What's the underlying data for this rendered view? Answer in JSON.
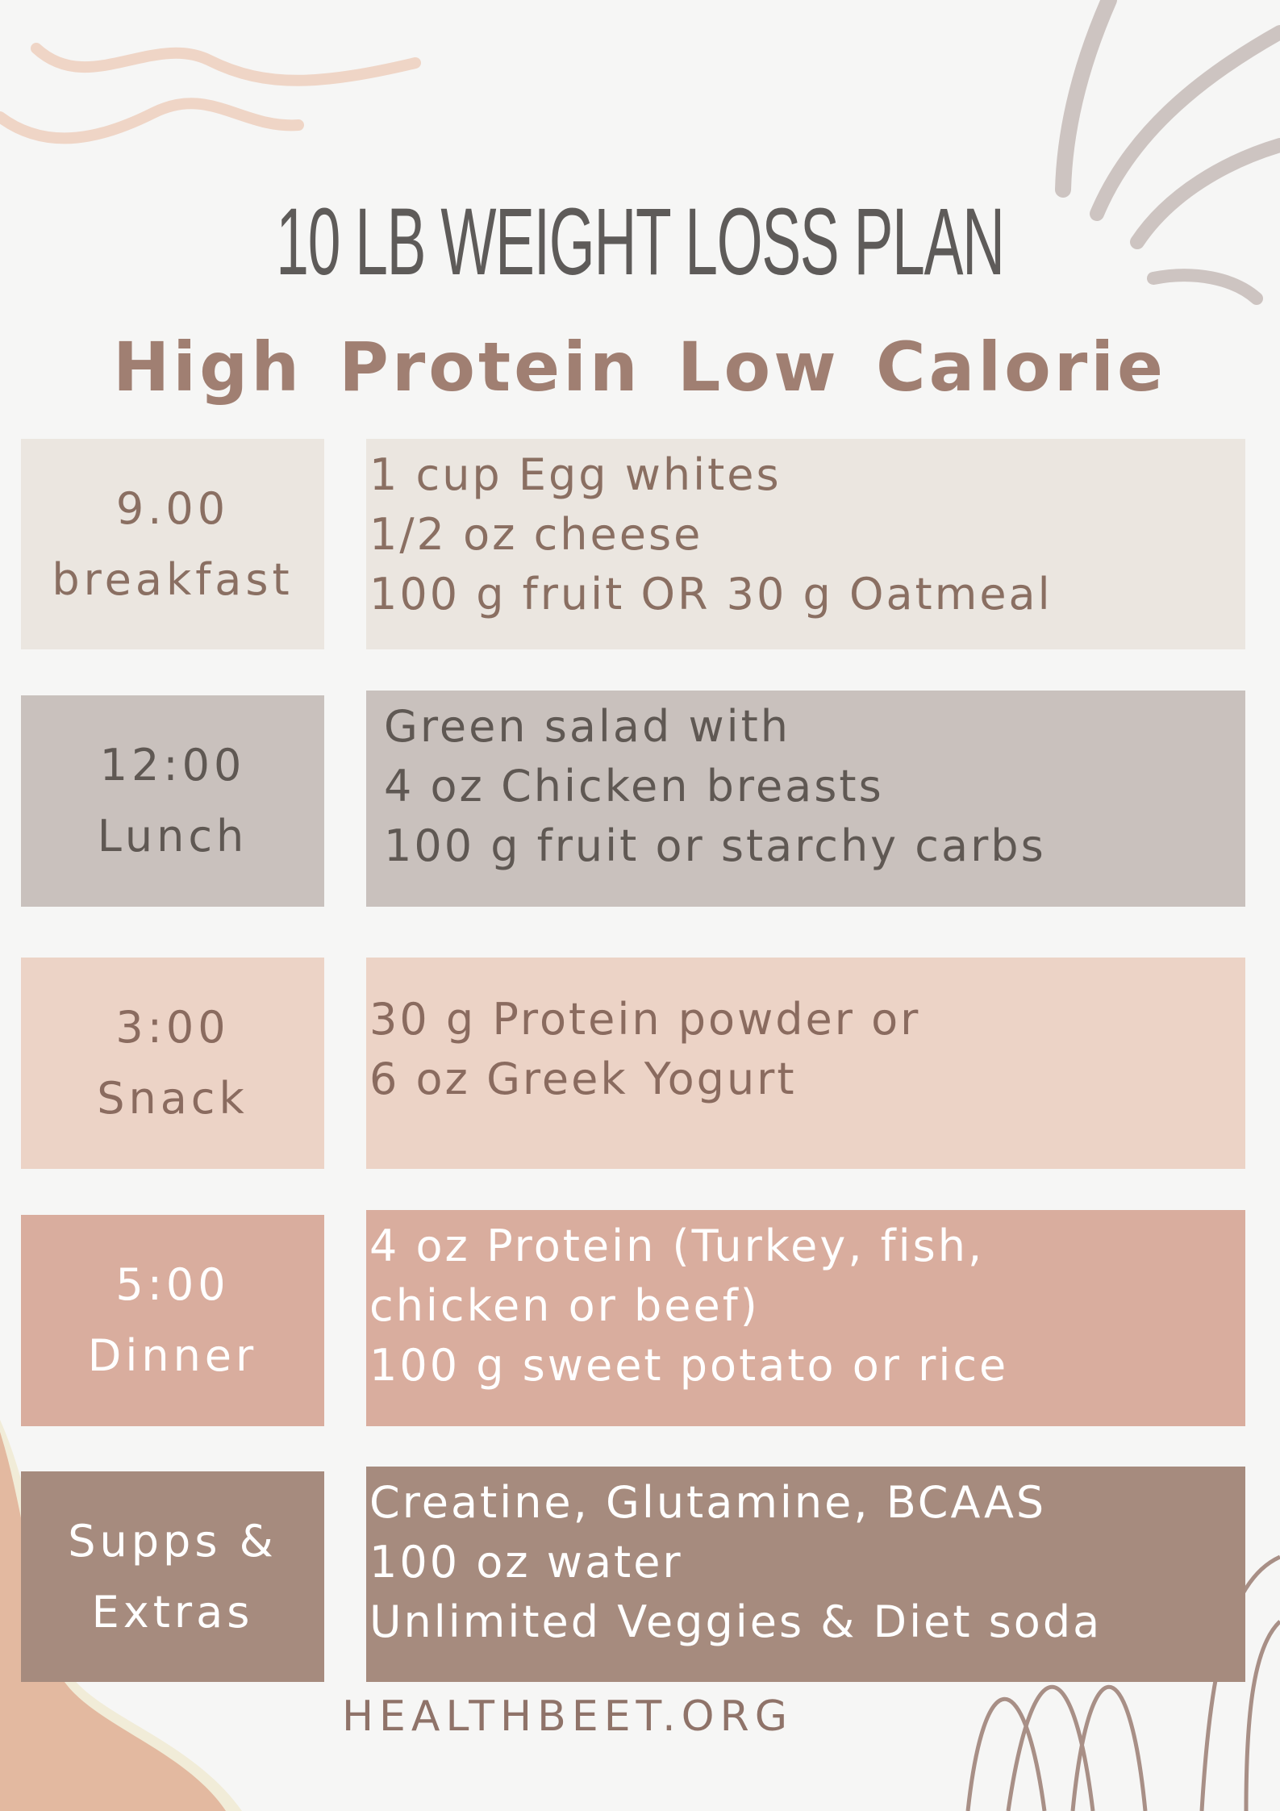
{
  "title": "10 LB WEIGHT LOSS PLAN",
  "subtitle": "High Protein Low Calorie",
  "colors": {
    "background": "#f6f6f5",
    "breakfast": "#ebe6e0",
    "lunch": "#c9c1bd",
    "snack": "#ecd3c6",
    "dinner": "#d9ad9e",
    "extras": "#a68b7e"
  },
  "meals": [
    {
      "time": "9.00",
      "label": "breakfast",
      "items": [
        "1 cup Egg whites",
        "1/2 oz cheese",
        "100 g fruit OR 30 g Oatmeal"
      ]
    },
    {
      "time": "12:00",
      "label": "Lunch",
      "items": [
        "Green salad with",
        "4 oz Chicken breasts",
        "100 g fruit or starchy carbs"
      ]
    },
    {
      "time": "3:00",
      "label": "Snack",
      "items": [
        "30 g Protein powder or",
        "6 oz Greek Yogurt"
      ]
    },
    {
      "time": "5:00",
      "label": "Dinner",
      "items": [
        "4 oz Protein (Turkey, fish,",
        "chicken or beef)",
        "100 g sweet potato or rice"
      ]
    },
    {
      "time": "Supps &",
      "label": "Extras",
      "items": [
        "Creatine, Glutamine, BCAAS",
        "100 oz water",
        "Unlimited Veggies & Diet soda"
      ]
    }
  ],
  "footer": "HEALTHBEET.ORG"
}
